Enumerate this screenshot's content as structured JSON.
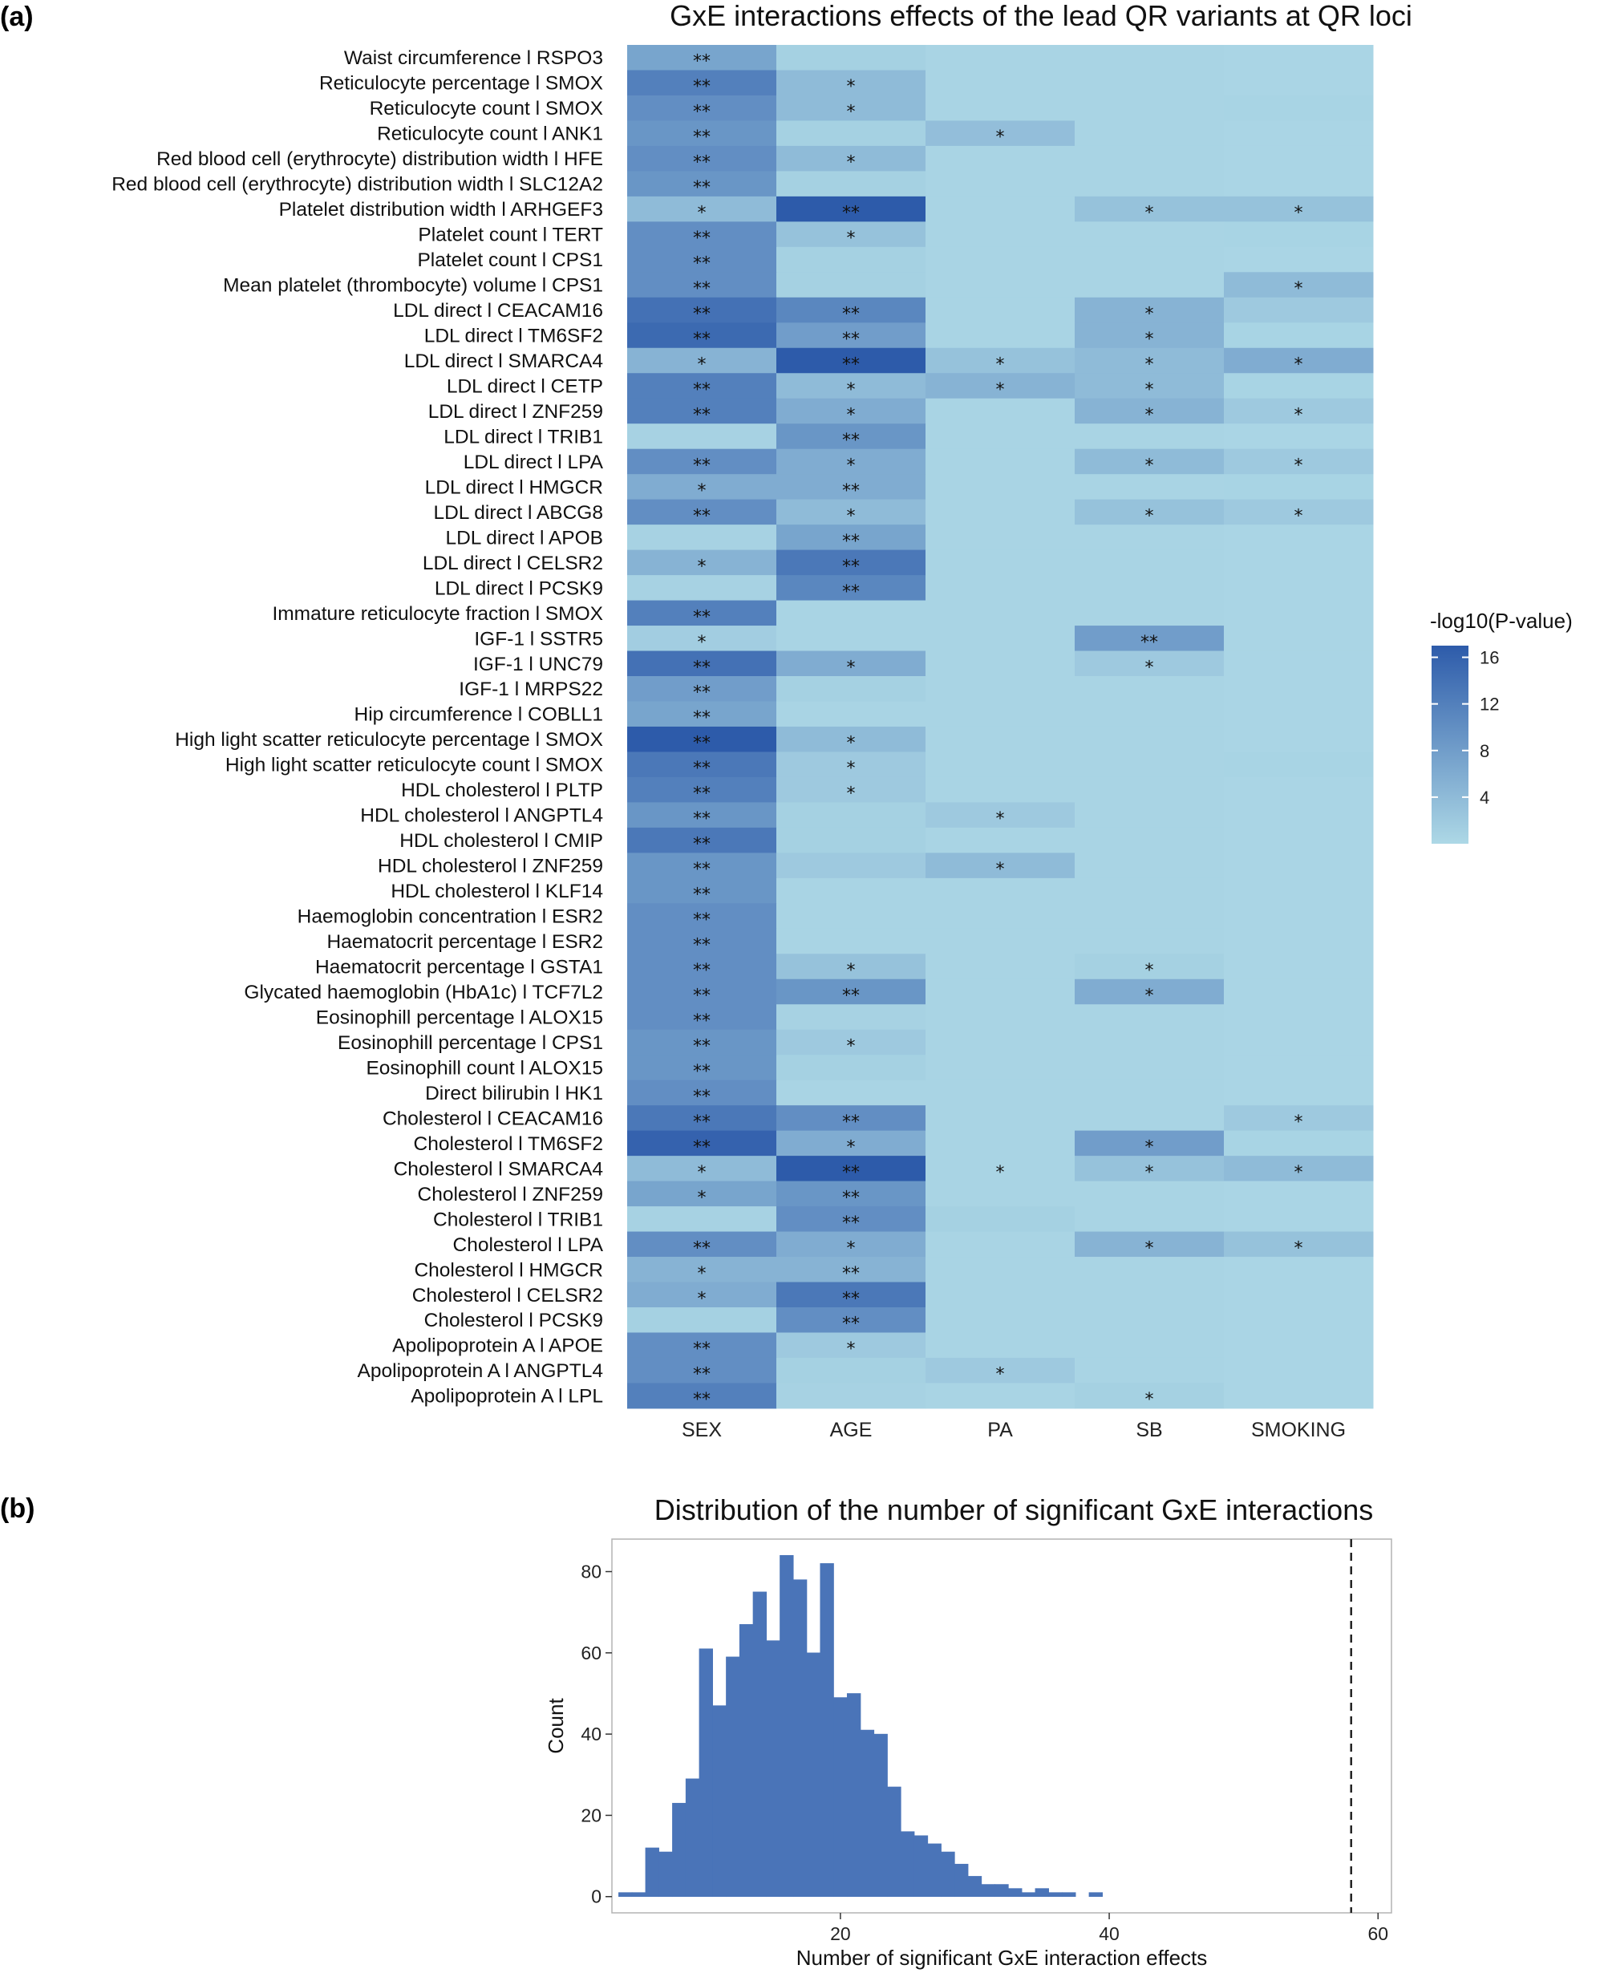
{
  "panels": {
    "a": "(a)",
    "b": "(b)"
  },
  "chart_data": [
    {
      "type": "heatmap",
      "title": "GxE interactions effects of the lead QR variants at QR loci",
      "columns": [
        "SEX",
        "AGE",
        "PA",
        "SB",
        "SMOKING"
      ],
      "legend": {
        "title": "-log10(P-value)",
        "ticks": [
          4,
          8,
          12,
          16
        ],
        "range": [
          0,
          17
        ],
        "low_color": "#ADD8E6",
        "high_color": "#2D5BAA"
      },
      "rows": [
        {
          "label": "Waist circumference l RSPO3",
          "values": [
            7,
            1,
            0.5,
            0.5,
            0.4
          ],
          "stars": [
            "**",
            "",
            "",
            "",
            ""
          ]
        },
        {
          "label": "Reticulocyte percentage l SMOX",
          "values": [
            12,
            4,
            0.5,
            0.5,
            0.4
          ],
          "stars": [
            "**",
            "*",
            "",
            "",
            ""
          ]
        },
        {
          "label": "Reticulocyte count l SMOX",
          "values": [
            10,
            4,
            0.5,
            0.5,
            0.6
          ],
          "stars": [
            "**",
            "*",
            "",
            "",
            ""
          ]
        },
        {
          "label": "Reticulocyte count l ANK1",
          "values": [
            9,
            1,
            3.5,
            0.5,
            0.4
          ],
          "stars": [
            "**",
            "",
            "*",
            "",
            ""
          ]
        },
        {
          "label": "Red blood cell (erythrocyte) distribution width l HFE",
          "values": [
            10,
            4,
            0.5,
            0.5,
            0.4
          ],
          "stars": [
            "**",
            "*",
            "",
            "",
            ""
          ]
        },
        {
          "label": "Red blood cell (erythrocyte) distribution width l SLC12A2",
          "values": [
            9,
            1,
            0.5,
            0.5,
            0.4
          ],
          "stars": [
            "**",
            "",
            "",
            "",
            ""
          ]
        },
        {
          "label": "Platelet distribution width l ARHGEF3",
          "values": [
            4,
            17,
            0.5,
            3,
            3
          ],
          "stars": [
            "*",
            "**",
            "",
            "*",
            "*"
          ]
        },
        {
          "label": "Platelet count l TERT",
          "values": [
            10,
            3,
            0.5,
            0.5,
            0.6
          ],
          "stars": [
            "**",
            "*",
            "",
            "",
            ""
          ]
        },
        {
          "label": "Platelet count l CPS1",
          "values": [
            10,
            1,
            0.5,
            0.5,
            0.4
          ],
          "stars": [
            "**",
            "",
            "",
            "",
            ""
          ]
        },
        {
          "label": "Mean platelet (thrombocyte) volume l CPS1",
          "values": [
            10,
            1,
            0.5,
            0.5,
            4
          ],
          "stars": [
            "**",
            "",
            "",
            "",
            "*"
          ]
        },
        {
          "label": "LDL direct l CEACAM16",
          "values": [
            14,
            11,
            0.5,
            5,
            2
          ],
          "stars": [
            "**",
            "**",
            "",
            "*",
            ""
          ]
        },
        {
          "label": "LDL direct l TM6SF2",
          "values": [
            15,
            8,
            0.5,
            5,
            0.6
          ],
          "stars": [
            "**",
            "**",
            "",
            "*",
            ""
          ]
        },
        {
          "label": "LDL direct l SMARCA4",
          "values": [
            5,
            17,
            3,
            4,
            6
          ],
          "stars": [
            "*",
            "**",
            "*",
            "*",
            "*"
          ]
        },
        {
          "label": "LDL direct l CETP",
          "values": [
            12,
            4,
            5,
            4,
            0.6
          ],
          "stars": [
            "**",
            "*",
            "*",
            "*",
            ""
          ]
        },
        {
          "label": "LDL direct l ZNF259",
          "values": [
            12,
            6,
            0.5,
            5,
            2
          ],
          "stars": [
            "**",
            "*",
            "",
            "*",
            "*"
          ]
        },
        {
          "label": "LDL direct l TRIB1",
          "values": [
            0.8,
            9,
            0.5,
            0.5,
            0.4
          ],
          "stars": [
            "",
            "**",
            "",
            "",
            ""
          ]
        },
        {
          "label": "LDL direct l LPA",
          "values": [
            10,
            6,
            0.5,
            4,
            2
          ],
          "stars": [
            "**",
            "*",
            "",
            "*",
            "*"
          ]
        },
        {
          "label": "LDL direct l HMGCR",
          "values": [
            6,
            6,
            0.5,
            0.5,
            0.6
          ],
          "stars": [
            "*",
            "**",
            "",
            "",
            ""
          ]
        },
        {
          "label": "LDL direct l ABCG8",
          "values": [
            10,
            4,
            0.5,
            3,
            2
          ],
          "stars": [
            "**",
            "*",
            "",
            "*",
            "*"
          ]
        },
        {
          "label": "LDL direct l APOB",
          "values": [
            0.8,
            7,
            0.5,
            0.5,
            0.4
          ],
          "stars": [
            "",
            "**",
            "",
            "",
            ""
          ]
        },
        {
          "label": "LDL direct l CELSR2",
          "values": [
            5,
            13,
            0.5,
            0.5,
            0.4
          ],
          "stars": [
            "*",
            "**",
            "",
            "",
            ""
          ]
        },
        {
          "label": "LDL direct l PCSK9",
          "values": [
            0.8,
            11,
            0.5,
            0.5,
            0.4
          ],
          "stars": [
            "",
            "**",
            "",
            "",
            ""
          ]
        },
        {
          "label": "Immature reticulocyte fraction l SMOX",
          "values": [
            12,
            0.5,
            0.5,
            0.5,
            0.4
          ],
          "stars": [
            "**",
            "",
            "",
            "",
            ""
          ]
        },
        {
          "label": "IGF-1 l SSTR5",
          "values": [
            1.5,
            0.5,
            0.5,
            8,
            0.4
          ],
          "stars": [
            "*",
            "",
            "",
            "**",
            ""
          ]
        },
        {
          "label": "IGF-1 l UNC79",
          "values": [
            14,
            6,
            0.5,
            2,
            0.4
          ],
          "stars": [
            "**",
            "*",
            "",
            "*",
            ""
          ]
        },
        {
          "label": "IGF-1 l MRPS22",
          "values": [
            8,
            1,
            0.5,
            0.5,
            0.4
          ],
          "stars": [
            "**",
            "",
            "",
            "",
            ""
          ]
        },
        {
          "label": "Hip circumference l COBLL1",
          "values": [
            7,
            0.5,
            0.5,
            0.5,
            0.4
          ],
          "stars": [
            "**",
            "",
            "",
            "",
            ""
          ]
        },
        {
          "label": "High light scatter reticulocyte percentage l SMOX",
          "values": [
            17,
            4,
            0.5,
            0.5,
            0.4
          ],
          "stars": [
            "**",
            "*",
            "",
            "",
            ""
          ]
        },
        {
          "label": "High light scatter reticulocyte count l SMOX",
          "values": [
            13,
            2,
            0.5,
            0.5,
            0.6
          ],
          "stars": [
            "**",
            "*",
            "",
            "",
            ""
          ]
        },
        {
          "label": "HDL cholesterol l PLTP",
          "values": [
            12,
            2,
            0.5,
            0.5,
            0.4
          ],
          "stars": [
            "**",
            "*",
            "",
            "",
            ""
          ]
        },
        {
          "label": "HDL cholesterol l ANGPTL4",
          "values": [
            9,
            1,
            2,
            0.5,
            0.4
          ],
          "stars": [
            "**",
            "",
            "*",
            "",
            ""
          ]
        },
        {
          "label": "HDL cholesterol l CMIP",
          "values": [
            13,
            1,
            0.5,
            0.5,
            0.4
          ],
          "stars": [
            "**",
            "",
            "",
            "",
            ""
          ]
        },
        {
          "label": "HDL cholesterol l ZNF259",
          "values": [
            9,
            2,
            4,
            0.5,
            0.4
          ],
          "stars": [
            "**",
            "",
            "*",
            "",
            ""
          ]
        },
        {
          "label": "HDL cholesterol l KLF14",
          "values": [
            9,
            0.5,
            0.5,
            0.5,
            0.4
          ],
          "stars": [
            "**",
            "",
            "",
            "",
            ""
          ]
        },
        {
          "label": "Haemoglobin concentration l ESR2",
          "values": [
            10,
            0.5,
            0.5,
            0.5,
            0.4
          ],
          "stars": [
            "**",
            "",
            "",
            "",
            ""
          ]
        },
        {
          "label": "Haematocrit percentage l ESR2",
          "values": [
            10,
            0.5,
            0.5,
            0.5,
            0.4
          ],
          "stars": [
            "**",
            "",
            "",
            "",
            ""
          ]
        },
        {
          "label": "Haematocrit percentage l GSTA1",
          "values": [
            10,
            3,
            0.5,
            1,
            0.4
          ],
          "stars": [
            "**",
            "*",
            "",
            "*",
            ""
          ]
        },
        {
          "label": "Glycated haemoglobin (HbA1c) l TCF7L2",
          "values": [
            10,
            9,
            0.5,
            6,
            0.4
          ],
          "stars": [
            "**",
            "**",
            "",
            "*",
            ""
          ]
        },
        {
          "label": "Eosinophill percentage l ALOX15",
          "values": [
            10,
            0.8,
            0.5,
            0.5,
            0.4
          ],
          "stars": [
            "**",
            "",
            "",
            "",
            ""
          ]
        },
        {
          "label": "Eosinophill percentage l CPS1",
          "values": [
            9,
            2,
            0.5,
            0.5,
            0.4
          ],
          "stars": [
            "**",
            "*",
            "",
            "",
            ""
          ]
        },
        {
          "label": "Eosinophill count l ALOX15",
          "values": [
            9,
            1,
            0.5,
            0.5,
            0.4
          ],
          "stars": [
            "**",
            "",
            "",
            "",
            ""
          ]
        },
        {
          "label": "Direct bilirubin l HK1",
          "values": [
            10,
            0.5,
            0.5,
            0.5,
            0.4
          ],
          "stars": [
            "**",
            "",
            "",
            "",
            ""
          ]
        },
        {
          "label": "Cholesterol l CEACAM16",
          "values": [
            13,
            10,
            0.5,
            0.5,
            2
          ],
          "stars": [
            "**",
            "**",
            "",
            "",
            "*"
          ]
        },
        {
          "label": "Cholesterol l TM6SF2",
          "values": [
            16,
            6,
            0.5,
            8,
            0.6
          ],
          "stars": [
            "**",
            "*",
            "",
            "*",
            ""
          ]
        },
        {
          "label": "Cholesterol l SMARCA4",
          "values": [
            4,
            17,
            0.5,
            3,
            4
          ],
          "stars": [
            "*",
            "**",
            "*",
            "*",
            "*"
          ]
        },
        {
          "label": "Cholesterol l ZNF259",
          "values": [
            7,
            9,
            0.5,
            0.5,
            0.4
          ],
          "stars": [
            "*",
            "**",
            "",
            "",
            ""
          ]
        },
        {
          "label": "Cholesterol l TRIB1",
          "values": [
            0.8,
            10,
            1,
            0.5,
            0.4
          ],
          "stars": [
            "",
            "**",
            "",
            "",
            ""
          ]
        },
        {
          "label": "Cholesterol l LPA",
          "values": [
            10,
            6,
            0.5,
            5,
            3
          ],
          "stars": [
            "**",
            "*",
            "",
            "*",
            "*"
          ]
        },
        {
          "label": "Cholesterol l HMGCR",
          "values": [
            5,
            5,
            0.5,
            0.5,
            0.4
          ],
          "stars": [
            "*",
            "**",
            "",
            "",
            ""
          ]
        },
        {
          "label": "Cholesterol l CELSR2",
          "values": [
            6,
            13,
            0.5,
            0.5,
            0.4
          ],
          "stars": [
            "*",
            "**",
            "",
            "",
            ""
          ]
        },
        {
          "label": "Cholesterol l PCSK9",
          "values": [
            1,
            10,
            0.5,
            0.5,
            0.4
          ],
          "stars": [
            "",
            "**",
            "",
            "",
            ""
          ]
        },
        {
          "label": "Apolipoprotein A l APOE",
          "values": [
            10,
            2,
            0.5,
            0.5,
            0.4
          ],
          "stars": [
            "**",
            "*",
            "",
            "",
            ""
          ]
        },
        {
          "label": "Apolipoprotein A l ANGPTL4",
          "values": [
            10,
            1,
            2,
            0.5,
            0.4
          ],
          "stars": [
            "**",
            "",
            "*",
            "",
            ""
          ]
        },
        {
          "label": "Apolipoprotein A l LPL",
          "values": [
            12,
            0.8,
            0.5,
            1,
            0.4
          ],
          "stars": [
            "**",
            "",
            "",
            "*",
            ""
          ]
        }
      ]
    },
    {
      "type": "histogram",
      "title": "Distribution of the number of significant GxE interactions",
      "xlabel": "Number of significant GxE interaction effects",
      "ylabel": "Count",
      "xlim": [
        3,
        61
      ],
      "ylim": [
        -4,
        88
      ],
      "xticks": [
        20,
        40,
        60
      ],
      "yticks": [
        0,
        20,
        40,
        60,
        80
      ],
      "bin_width": 1,
      "bin_start": 4,
      "counts": [
        1,
        1,
        12,
        11,
        23,
        29,
        61,
        47,
        59,
        67,
        75,
        63,
        84,
        78,
        60,
        82,
        49,
        50,
        41,
        40,
        27,
        16,
        15,
        13,
        11,
        8,
        5,
        3,
        3,
        2,
        1,
        2,
        1,
        1,
        0,
        1
      ],
      "reference_line_x": 58,
      "bar_color": "#4A74B8"
    }
  ]
}
